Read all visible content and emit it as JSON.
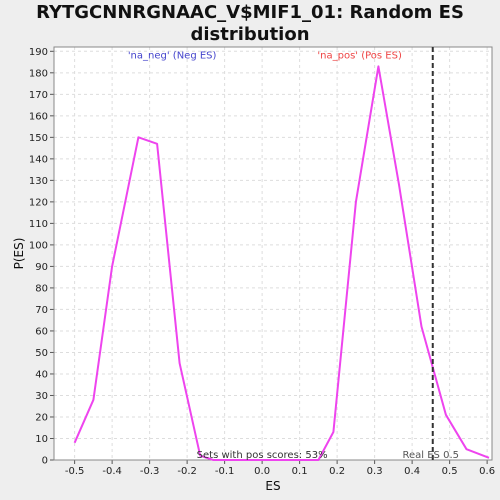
{
  "chart_data": {
    "type": "line",
    "title_lines": [
      "RYTGCNNRGNAAC_V$MIF1_01: Random ES",
      "distribution"
    ],
    "xlabel": "ES",
    "ylabel": "P(ES)",
    "xlim": [
      -0.555,
      0.613
    ],
    "ylim": [
      0,
      192
    ],
    "x_ticks": [
      -0.5,
      -0.4,
      -0.3,
      -0.2,
      -0.1,
      0.0,
      0.1,
      0.2,
      0.3,
      0.4,
      0.5,
      0.6
    ],
    "x_tick_labels": [
      "-0.5",
      "-0.4",
      "-0.3",
      "-0.2",
      "-0.1",
      "0.0",
      "0.1",
      "0.2",
      "0.3",
      "0.4",
      "0.5",
      "0.6"
    ],
    "y_ticks": [
      0,
      10,
      20,
      30,
      40,
      50,
      60,
      70,
      80,
      90,
      100,
      110,
      120,
      130,
      140,
      150,
      160,
      170,
      180,
      190
    ],
    "grid": true,
    "series": [
      {
        "color": "#ee44ee",
        "x": [
          -0.5,
          -0.45,
          -0.4,
          -0.33,
          -0.28,
          -0.22,
          -0.165,
          -0.13,
          0.0,
          0.15,
          0.19,
          0.25,
          0.31,
          0.365,
          0.425,
          0.49,
          0.545,
          0.605
        ],
        "values": [
          8,
          28,
          90,
          150,
          147,
          45,
          2,
          0,
          0,
          0,
          13,
          120,
          183,
          128,
          62,
          21,
          5,
          1
        ]
      }
    ],
    "reference_line": {
      "x": 0.455,
      "label": "Real ES 0.5",
      "color": "#333333"
    },
    "annotations": [
      {
        "text": "'na_neg' (Neg ES)",
        "color": "#4444cc",
        "x": -0.24,
        "y": 188
      },
      {
        "text": "'na_pos' (Pos ES)",
        "color": "#ee4444",
        "x": 0.26,
        "y": 188
      },
      {
        "text": "Sets with pos scores: 53%",
        "color": "#333333",
        "x": 0.0,
        "y": 0
      }
    ],
    "background": "#ffffff",
    "page_background": "#eeeeee"
  }
}
